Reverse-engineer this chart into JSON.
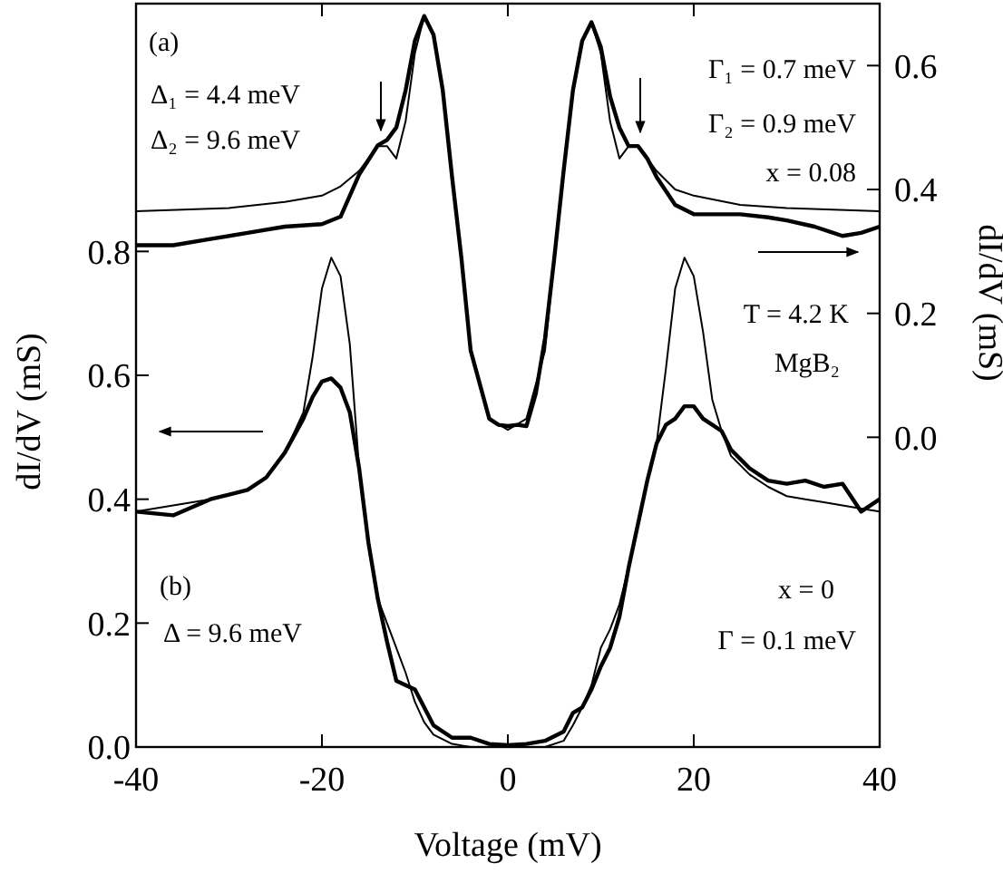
{
  "chart_data": {
    "type": "line",
    "xlabel": "Voltage (mV)",
    "ylabel": "dI/dV (mS)",
    "y2label": "dI/dV (mS)",
    "xlim": [
      -40,
      40
    ],
    "xticks": [
      -40,
      -20,
      0,
      20,
      40
    ],
    "ylim": [
      0,
      1.2
    ],
    "yticks": [
      {
        "value": 0,
        "label": "0.0"
      },
      0.2,
      0.4,
      0.6,
      0.8
    ],
    "y2lim": [
      -0.5,
      0.7
    ],
    "y2ticks": [
      {
        "value": 0,
        "label": "0.0"
      },
      0.2,
      0.4,
      0.6
    ],
    "grid": false,
    "marker": "none",
    "line_style": "solid",
    "series": [
      {
        "color": "#000000",
        "axis": "y2",
        "x": [
          -40,
          -36,
          -32,
          -28,
          -24,
          -20,
          -18,
          -16,
          -14,
          -13,
          -12,
          -11,
          -10,
          -9,
          -8,
          -7,
          -6,
          -5,
          -4,
          -2,
          -1,
          0,
          1,
          2,
          3,
          4,
          5,
          6,
          7,
          8,
          9,
          10,
          11,
          12,
          13,
          14,
          15,
          16,
          18,
          20,
          25,
          28,
          30,
          33,
          36,
          38,
          40
        ],
        "values": [
          0.31,
          0.31,
          0.32,
          0.33,
          0.34,
          0.344,
          0.356,
          0.424,
          0.471,
          0.48,
          0.5,
          0.56,
          0.64,
          0.68,
          0.65,
          0.56,
          0.42,
          0.29,
          0.14,
          0.03,
          0.02,
          0.018,
          0.02,
          0.018,
          0.07,
          0.16,
          0.29,
          0.43,
          0.56,
          0.64,
          0.67,
          0.63,
          0.55,
          0.5,
          0.47,
          0.47,
          0.45,
          0.42,
          0.375,
          0.36,
          0.36,
          0.355,
          0.35,
          0.34,
          0.325,
          0.33,
          0.34
        ]
      },
      {
        "color": "#000000",
        "axis": "y2",
        "x": [
          -40,
          -30,
          -24,
          -20,
          -18,
          -16,
          -14,
          -13,
          -12,
          -11,
          -10,
          -9,
          -8,
          -7,
          -6,
          -5,
          -4,
          -2,
          0,
          2,
          4,
          5,
          6,
          7,
          8,
          9,
          10,
          11,
          12,
          13,
          14,
          16,
          18,
          20,
          25,
          30,
          40
        ],
        "values": [
          0.365,
          0.37,
          0.38,
          0.39,
          0.405,
          0.43,
          0.47,
          0.47,
          0.45,
          0.51,
          0.62,
          0.68,
          0.65,
          0.56,
          0.42,
          0.29,
          0.14,
          0.03,
          0.012,
          0.03,
          0.14,
          0.29,
          0.43,
          0.56,
          0.64,
          0.67,
          0.62,
          0.51,
          0.45,
          0.47,
          0.47,
          0.43,
          0.4,
          0.39,
          0.375,
          0.37,
          0.365
        ]
      },
      {
        "color": "#000000",
        "x": [
          -40,
          -36,
          -32,
          -28,
          -26,
          -24,
          -22,
          -21,
          -20,
          -19,
          -18,
          -17,
          -16,
          -15,
          -14,
          -13,
          -12,
          -11,
          -10,
          -9,
          -8,
          -6,
          -4,
          -2,
          0,
          2,
          4,
          6,
          7,
          8,
          9,
          10,
          11,
          12,
          13,
          14,
          15,
          16,
          17,
          18,
          19,
          20,
          21,
          22,
          23,
          24,
          26,
          28,
          30,
          32,
          34,
          36,
          38,
          40
        ],
        "values": [
          0.38,
          0.374,
          0.4,
          0.415,
          0.435,
          0.475,
          0.53,
          0.565,
          0.59,
          0.595,
          0.58,
          0.54,
          0.45,
          0.33,
          0.24,
          0.17,
          0.107,
          0.1,
          0.093,
          0.064,
          0.035,
          0.015,
          0.015,
          0.005,
          0.003,
          0.005,
          0.01,
          0.025,
          0.055,
          0.064,
          0.093,
          0.13,
          0.16,
          0.21,
          0.29,
          0.36,
          0.43,
          0.49,
          0.52,
          0.53,
          0.55,
          0.55,
          0.53,
          0.52,
          0.51,
          0.48,
          0.45,
          0.43,
          0.425,
          0.43,
          0.42,
          0.425,
          0.38,
          0.4
        ]
      },
      {
        "color": "#000000",
        "x": [
          -40,
          -36,
          -32,
          -28,
          -26,
          -24,
          -22,
          -21,
          -20,
          -19,
          -18,
          -17,
          -16,
          -15,
          -14,
          -13,
          -12,
          -11,
          -10,
          -9,
          -8,
          -6,
          -4,
          -2,
          0,
          2,
          4,
          6,
          7,
          8,
          9,
          10,
          11,
          12,
          13,
          14,
          15,
          16,
          17,
          18,
          19,
          20,
          21,
          22,
          23,
          24,
          26,
          28,
          30,
          32,
          34,
          36,
          38,
          40
        ],
        "values": [
          0.38,
          0.39,
          0.4,
          0.415,
          0.435,
          0.475,
          0.54,
          0.63,
          0.74,
          0.79,
          0.76,
          0.65,
          0.45,
          0.33,
          0.24,
          0.2,
          0.16,
          0.12,
          0.073,
          0.04,
          0.02,
          0.005,
          0,
          0,
          0,
          0,
          0,
          0.01,
          0.035,
          0.064,
          0.1,
          0.16,
          0.19,
          0.23,
          0.29,
          0.36,
          0.43,
          0.49,
          0.61,
          0.74,
          0.79,
          0.76,
          0.67,
          0.56,
          0.51,
          0.47,
          0.44,
          0.42,
          0.405,
          0.4,
          0.395,
          0.39,
          0.385,
          0.38
        ]
      }
    ],
    "annotations": [
      "(a)",
      "Δ₁ = 4.4 meV",
      "Δ₂ = 9.6 meV",
      "Γ₁ = 0.7 meV",
      "Γ₂ = 0.9 meV",
      "x = 0.08",
      "T = 4.2 K",
      "MgB₂",
      "(b)",
      "Δ = 9.6 meV",
      "x = 0",
      "Γ = 0.1 meV"
    ]
  }
}
